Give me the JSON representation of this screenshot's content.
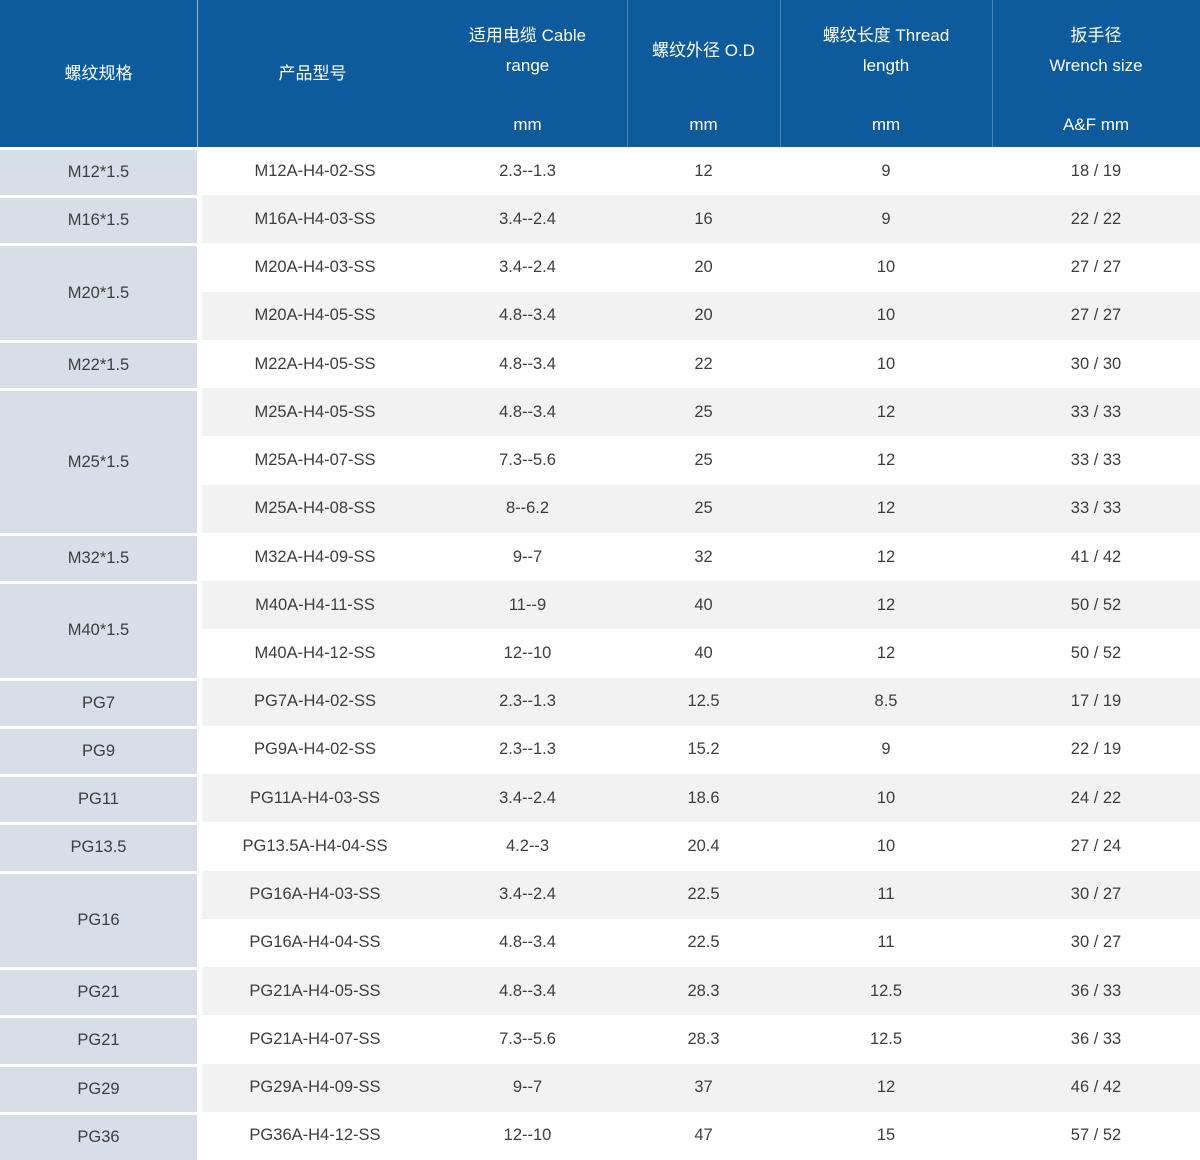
{
  "table": {
    "columns": [
      {
        "id": "spec",
        "lines": [
          "螺纹规格"
        ],
        "unit": ""
      },
      {
        "id": "model",
        "lines": [
          "产品型号"
        ],
        "unit": ""
      },
      {
        "id": "cable",
        "lines": [
          "适用电缆 Cable",
          "range"
        ],
        "unit": "mm"
      },
      {
        "id": "od",
        "lines": [
          "螺纹外径 O.D"
        ],
        "unit": "mm"
      },
      {
        "id": "thread",
        "lines": [
          "螺纹长度 Thread",
          "length"
        ],
        "unit": "mm"
      },
      {
        "id": "wrench",
        "lines": [
          "扳手径",
          "Wrench size"
        ],
        "unit": "A&F mm"
      }
    ],
    "groups": [
      {
        "spec": "M12*1.5",
        "rows": [
          {
            "model": "M12A-H4-02-SS",
            "cable": "2.3--1.3",
            "od": "12",
            "thread": "9",
            "wrench": "18 / 19"
          }
        ]
      },
      {
        "spec": "M16*1.5",
        "rows": [
          {
            "model": "M16A-H4-03-SS",
            "cable": "3.4--2.4",
            "od": "16",
            "thread": "9",
            "wrench": "22 / 22"
          }
        ]
      },
      {
        "spec": "M20*1.5",
        "rows": [
          {
            "model": "M20A-H4-03-SS",
            "cable": "3.4--2.4",
            "od": "20",
            "thread": "10",
            "wrench": "27 / 27"
          },
          {
            "model": "M20A-H4-05-SS",
            "cable": "4.8--3.4",
            "od": "20",
            "thread": "10",
            "wrench": "27 / 27"
          }
        ]
      },
      {
        "spec": "M22*1.5",
        "rows": [
          {
            "model": "M22A-H4-05-SS",
            "cable": "4.8--3.4",
            "od": "22",
            "thread": "10",
            "wrench": "30 / 30"
          }
        ]
      },
      {
        "spec": "M25*1.5",
        "rows": [
          {
            "model": "M25A-H4-05-SS",
            "cable": "4.8--3.4",
            "od": "25",
            "thread": "12",
            "wrench": "33 / 33"
          },
          {
            "model": "M25A-H4-07-SS",
            "cable": "7.3--5.6",
            "od": "25",
            "thread": "12",
            "wrench": "33 / 33"
          },
          {
            "model": "M25A-H4-08-SS",
            "cable": "8--6.2",
            "od": "25",
            "thread": "12",
            "wrench": "33 / 33"
          }
        ]
      },
      {
        "spec": "M32*1.5",
        "rows": [
          {
            "model": "M32A-H4-09-SS",
            "cable": "9--7",
            "od": "32",
            "thread": "12",
            "wrench": "41 / 42"
          }
        ]
      },
      {
        "spec": "M40*1.5",
        "rows": [
          {
            "model": "M40A-H4-11-SS",
            "cable": "11--9",
            "od": "40",
            "thread": "12",
            "wrench": "50 / 52"
          },
          {
            "model": "M40A-H4-12-SS",
            "cable": "12--10",
            "od": "40",
            "thread": "12",
            "wrench": "50 / 52"
          }
        ]
      },
      {
        "spec": "PG7",
        "rows": [
          {
            "model": "PG7A-H4-02-SS",
            "cable": "2.3--1.3",
            "od": "12.5",
            "thread": "8.5",
            "wrench": "17 / 19"
          }
        ]
      },
      {
        "spec": "PG9",
        "rows": [
          {
            "model": "PG9A-H4-02-SS",
            "cable": "2.3--1.3",
            "od": "15.2",
            "thread": "9",
            "wrench": "22 / 19"
          }
        ]
      },
      {
        "spec": "PG11",
        "rows": [
          {
            "model": "PG11A-H4-03-SS",
            "cable": "3.4--2.4",
            "od": "18.6",
            "thread": "10",
            "wrench": "24 / 22"
          }
        ]
      },
      {
        "spec": "PG13.5",
        "rows": [
          {
            "model": "PG13.5A-H4-04-SS",
            "cable": "4.2--3",
            "od": "20.4",
            "thread": "10",
            "wrench": "27 / 24"
          }
        ]
      },
      {
        "spec": "PG16",
        "rows": [
          {
            "model": "PG16A-H4-03-SS",
            "cable": "3.4--2.4",
            "od": "22.5",
            "thread": "11",
            "wrench": "30 / 27"
          },
          {
            "model": "PG16A-H4-04-SS",
            "cable": "4.8--3.4",
            "od": "22.5",
            "thread": "11",
            "wrench": "30 / 27"
          }
        ]
      },
      {
        "spec": "PG21",
        "rows": [
          {
            "model": "PG21A-H4-05-SS",
            "cable": "4.8--3.4",
            "od": "28.3",
            "thread": "12.5",
            "wrench": "36 / 33"
          }
        ]
      },
      {
        "spec": "PG21",
        "rows": [
          {
            "model": "PG21A-H4-07-SS",
            "cable": "7.3--5.6",
            "od": "28.3",
            "thread": "12.5",
            "wrench": "36 / 33"
          }
        ]
      },
      {
        "spec": "PG29",
        "rows": [
          {
            "model": "PG29A-H4-09-SS",
            "cable": "9--7",
            "od": "37",
            "thread": "12",
            "wrench": "46 / 42"
          }
        ]
      },
      {
        "spec": "PG36",
        "rows": [
          {
            "model": "PG36A-H4-12-SS",
            "cable": "12--10",
            "od": "47",
            "thread": "15",
            "wrench": "57 / 52"
          }
        ]
      }
    ],
    "colors": {
      "header_bg": "#0d5a9c",
      "header_text": "#ffffff",
      "spec_cell_bg": "#d8dee8",
      "stripe_white": "#ffffff",
      "stripe_alt": "#f2f2f2",
      "body_text": "#3d3d3d"
    }
  }
}
